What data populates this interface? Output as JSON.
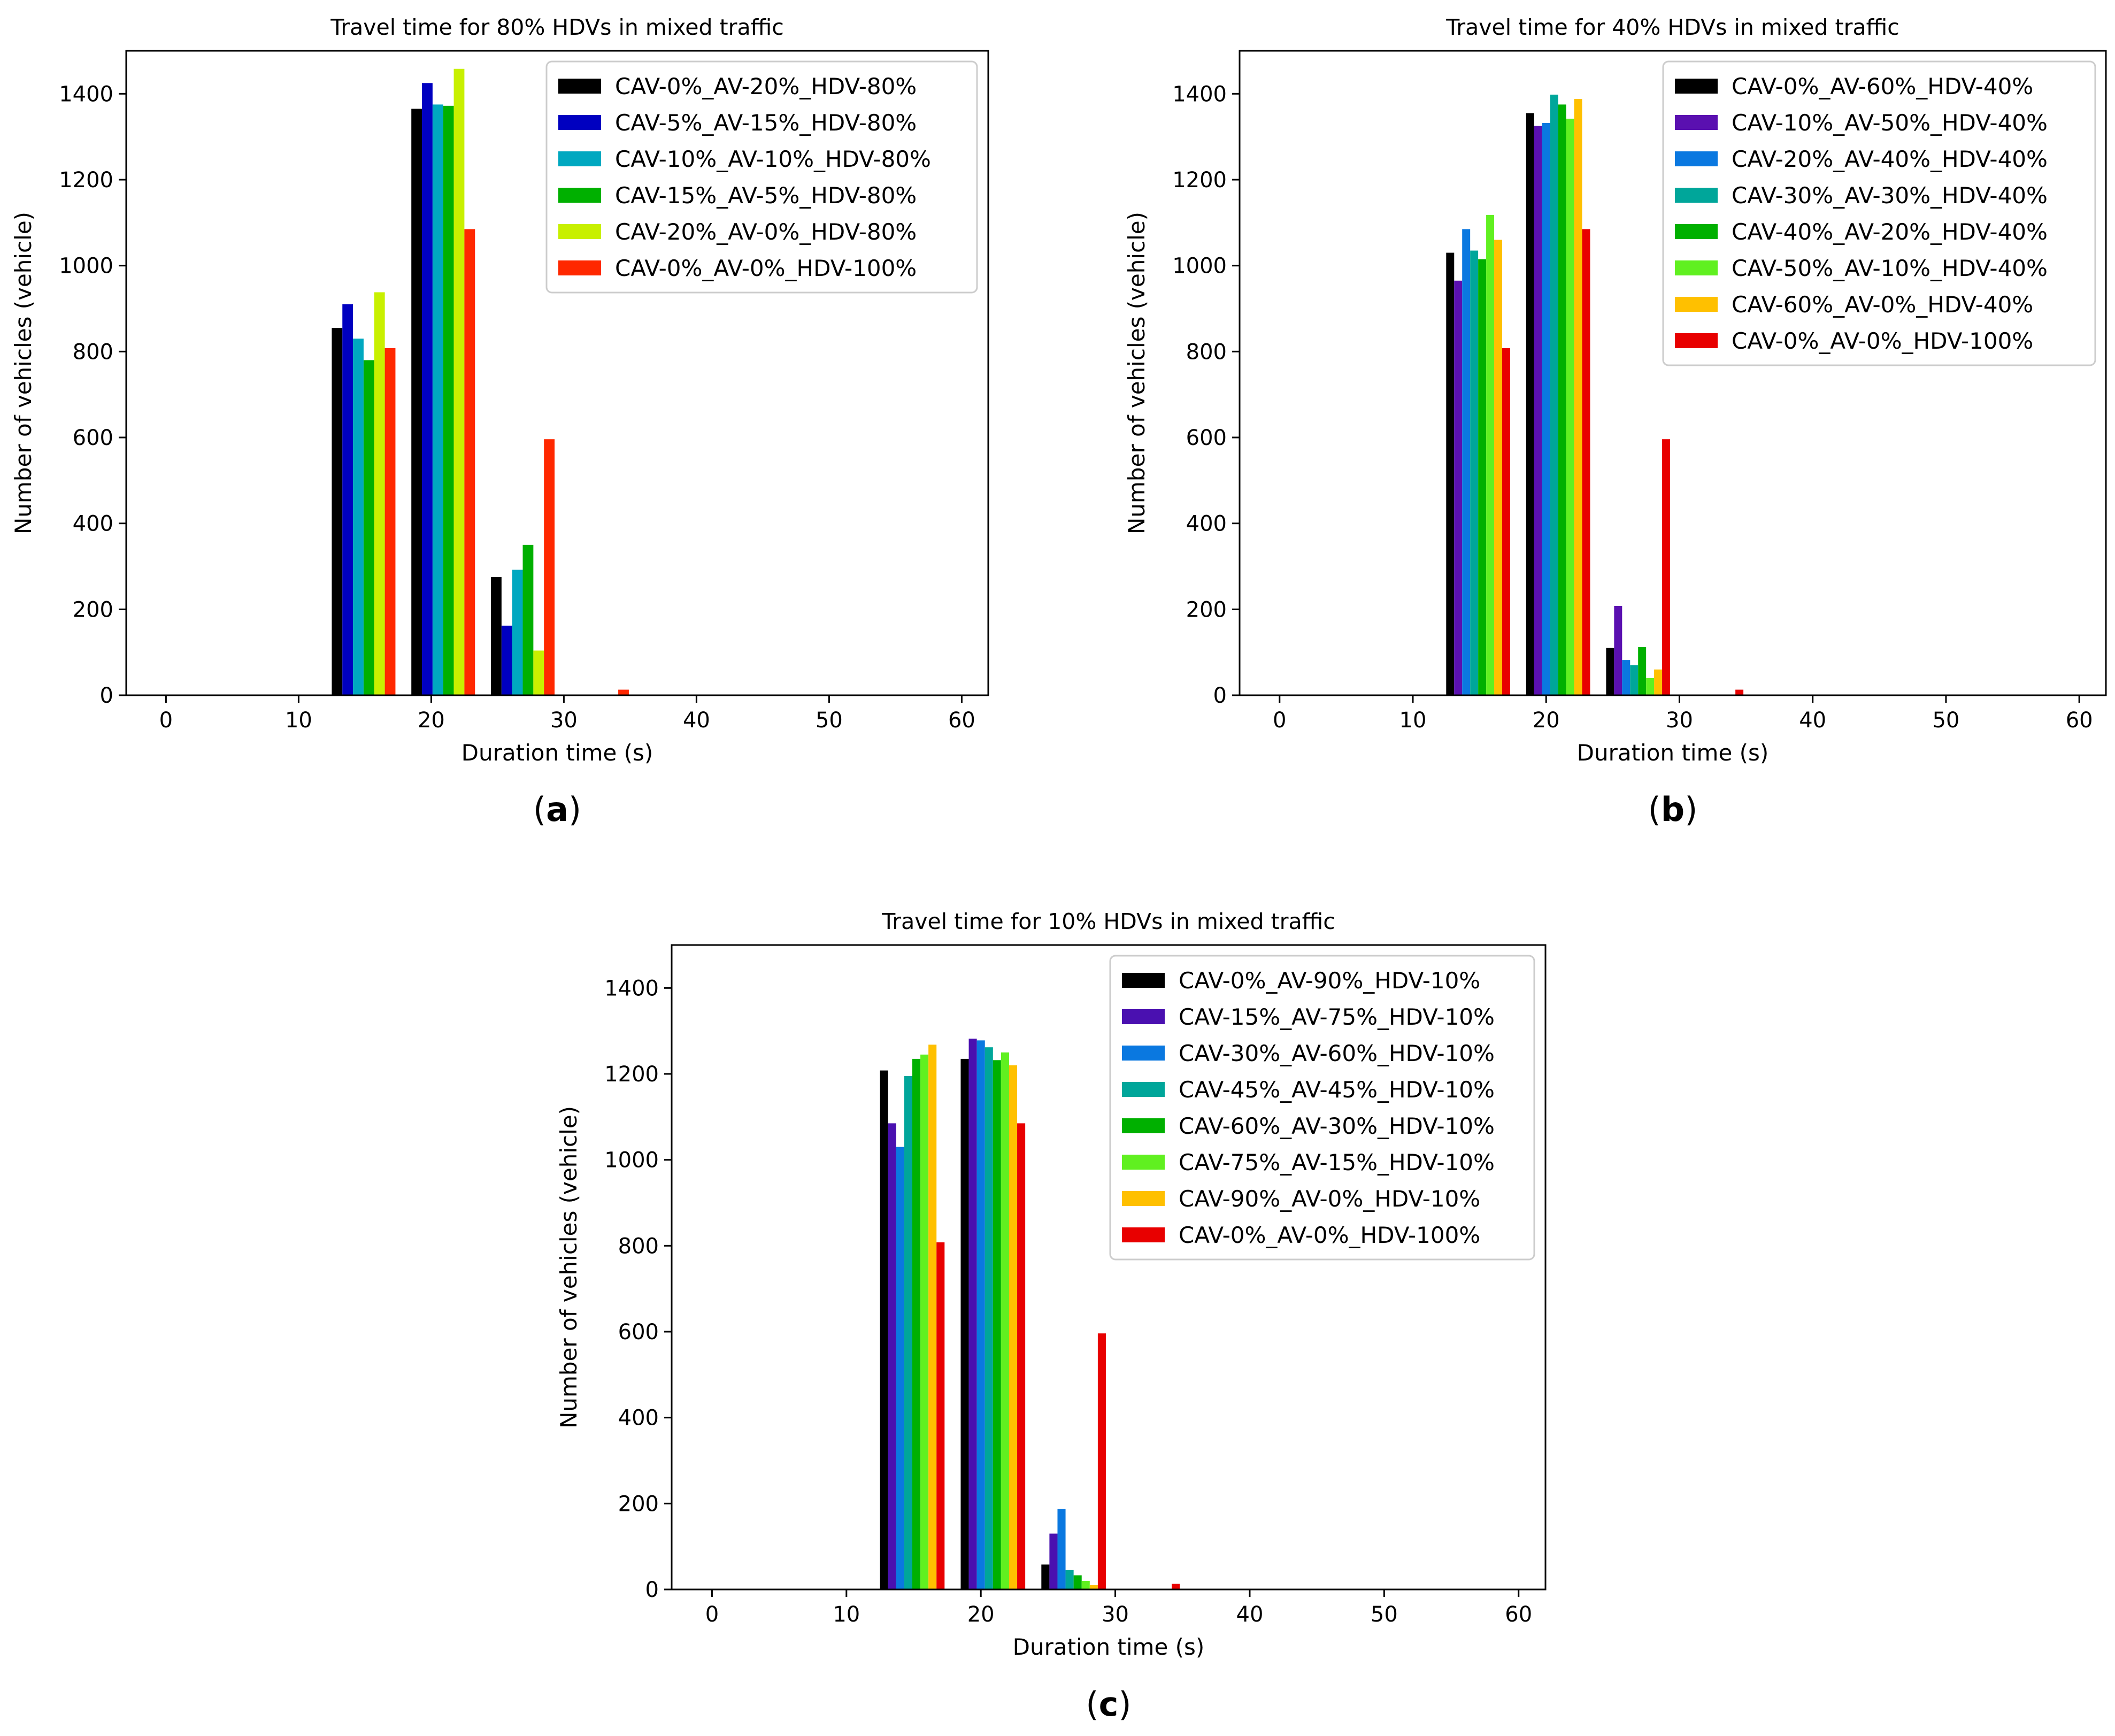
{
  "chart_data": [
    {
      "id": "a",
      "type": "bar",
      "title": "Travel time for 80% HDVs in mixed traffic",
      "xlabel": "Duration time (s)",
      "ylabel": "Number of vehicles (vehicle)",
      "caption_letter": "a",
      "xlim": [
        -3,
        62
      ],
      "ylim": [
        0,
        1500
      ],
      "xticks": [
        0,
        10,
        20,
        30,
        40,
        50,
        60
      ],
      "yticks": [
        0,
        200,
        400,
        600,
        800,
        1000,
        1200,
        1400
      ],
      "legend_position": "top-right",
      "bins": [
        12.5,
        18.5,
        24.5,
        30.5
      ],
      "bin_width": 6,
      "extra_point": {
        "x": 34.5,
        "value": 13,
        "series_index": 5
      },
      "series": [
        {
          "name": "CAV-0%_AV-20%_HDV-80%",
          "color": "#000000",
          "values": [
            855,
            1365,
            275,
            0
          ]
        },
        {
          "name": "CAV-5%_AV-15%_HDV-80%",
          "color": "#0000c0",
          "values": [
            910,
            1425,
            162,
            0
          ]
        },
        {
          "name": "CAV-10%_AV-10%_HDV-80%",
          "color": "#00a8c0",
          "values": [
            830,
            1375,
            292,
            0
          ]
        },
        {
          "name": "CAV-15%_AV-5%_HDV-80%",
          "color": "#00b000",
          "values": [
            780,
            1372,
            350,
            0
          ]
        },
        {
          "name": "CAV-20%_AV-0%_HDV-80%",
          "color": "#c8f000",
          "values": [
            938,
            1458,
            104,
            0
          ]
        },
        {
          "name": "CAV-0%_AV-0%_HDV-100%",
          "color": "#ff2800",
          "values": [
            808,
            1085,
            596,
            0
          ]
        }
      ]
    },
    {
      "id": "b",
      "type": "bar",
      "title": "Travel time for 40% HDVs in mixed traffic",
      "xlabel": "Duration time (s)",
      "ylabel": "Number of vehicles (vehicle)",
      "caption_letter": "b",
      "xlim": [
        -3,
        62
      ],
      "ylim": [
        0,
        1500
      ],
      "xticks": [
        0,
        10,
        20,
        30,
        40,
        50,
        60
      ],
      "yticks": [
        0,
        200,
        400,
        600,
        800,
        1000,
        1200,
        1400
      ],
      "legend_position": "top-right",
      "bins": [
        12.5,
        18.5,
        24.5,
        30.5
      ],
      "bin_width": 6,
      "extra_point": {
        "x": 34.5,
        "value": 13,
        "series_index": 7
      },
      "series": [
        {
          "name": "CAV-0%_AV-60%_HDV-40%",
          "color": "#000000",
          "values": [
            1030,
            1355,
            110,
            0
          ]
        },
        {
          "name": "CAV-10%_AV-50%_HDV-40%",
          "color": "#5a10b0",
          "values": [
            965,
            1325,
            208,
            0
          ]
        },
        {
          "name": "CAV-20%_AV-40%_HDV-40%",
          "color": "#0a78e0",
          "values": [
            1085,
            1332,
            82,
            0
          ]
        },
        {
          "name": "CAV-30%_AV-30%_HDV-40%",
          "color": "#00a69a",
          "values": [
            1035,
            1398,
            70,
            0
          ]
        },
        {
          "name": "CAV-40%_AV-20%_HDV-40%",
          "color": "#00b000",
          "values": [
            1015,
            1375,
            112,
            0
          ]
        },
        {
          "name": "CAV-50%_AV-10%_HDV-40%",
          "color": "#60f020",
          "values": [
            1118,
            1342,
            40,
            0
          ]
        },
        {
          "name": "CAV-60%_AV-0%_HDV-40%",
          "color": "#ffc000",
          "values": [
            1060,
            1388,
            60,
            0
          ]
        },
        {
          "name": "CAV-0%_AV-0%_HDV-100%",
          "color": "#e80000",
          "values": [
            808,
            1085,
            596,
            0
          ]
        }
      ]
    },
    {
      "id": "c",
      "type": "bar",
      "title": "Travel time for 10% HDVs in mixed traffic",
      "xlabel": "Duration time (s)",
      "ylabel": "Number of vehicles (vehicle)",
      "caption_letter": "c",
      "xlim": [
        -3,
        62
      ],
      "ylim": [
        0,
        1500
      ],
      "xticks": [
        0,
        10,
        20,
        30,
        40,
        50,
        60
      ],
      "yticks": [
        0,
        200,
        400,
        600,
        800,
        1000,
        1200,
        1400
      ],
      "legend_position": "top-right",
      "bins": [
        12.5,
        18.5,
        24.5,
        30.5
      ],
      "bin_width": 6,
      "extra_point": {
        "x": 34.5,
        "value": 13,
        "series_index": 7
      },
      "series": [
        {
          "name": "CAV-0%_AV-90%_HDV-10%",
          "color": "#000000",
          "values": [
            1208,
            1235,
            58,
            0
          ]
        },
        {
          "name": "CAV-15%_AV-75%_HDV-10%",
          "color": "#4a10b0",
          "values": [
            1085,
            1282,
            130,
            0
          ]
        },
        {
          "name": "CAV-30%_AV-60%_HDV-10%",
          "color": "#0a78e0",
          "values": [
            1030,
            1278,
            187,
            0
          ]
        },
        {
          "name": "CAV-45%_AV-45%_HDV-10%",
          "color": "#00a69a",
          "values": [
            1195,
            1262,
            45,
            0
          ]
        },
        {
          "name": "CAV-60%_AV-30%_HDV-10%",
          "color": "#00b000",
          "values": [
            1235,
            1232,
            33,
            0
          ]
        },
        {
          "name": "CAV-75%_AV-15%_HDV-10%",
          "color": "#60f020",
          "values": [
            1245,
            1250,
            20,
            0
          ]
        },
        {
          "name": "CAV-90%_AV-0%_HDV-10%",
          "color": "#ffc000",
          "values": [
            1268,
            1220,
            10,
            0
          ]
        },
        {
          "name": "CAV-0%_AV-0%_HDV-100%",
          "color": "#e80000",
          "values": [
            808,
            1085,
            596,
            0
          ]
        }
      ]
    }
  ]
}
